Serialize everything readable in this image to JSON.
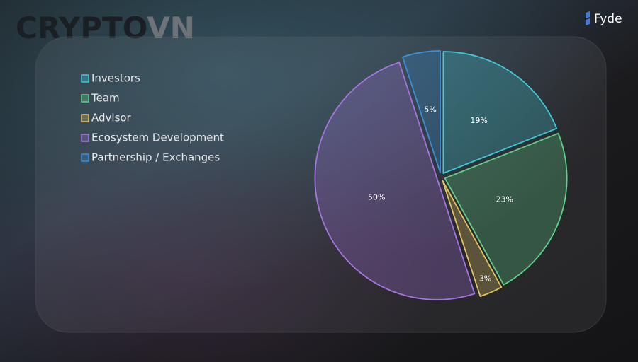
{
  "watermark": [
    "CRYPTO",
    "VN"
  ],
  "brand": "Fyde",
  "chart_data": {
    "type": "pie",
    "categories": [
      "Investors",
      "Team",
      "Advisor",
      "Ecosystem Development",
      "Partnership / Exchanges"
    ],
    "values": [
      19,
      23,
      3,
      50,
      5
    ],
    "value_labels": [
      "19%",
      "23%",
      "3%",
      "50%",
      "5%"
    ],
    "colors": [
      "#3ec9d9",
      "#5fd08a",
      "#e3c462",
      "#a574e0",
      "#3a8fd6"
    ],
    "legend": "top-left"
  }
}
